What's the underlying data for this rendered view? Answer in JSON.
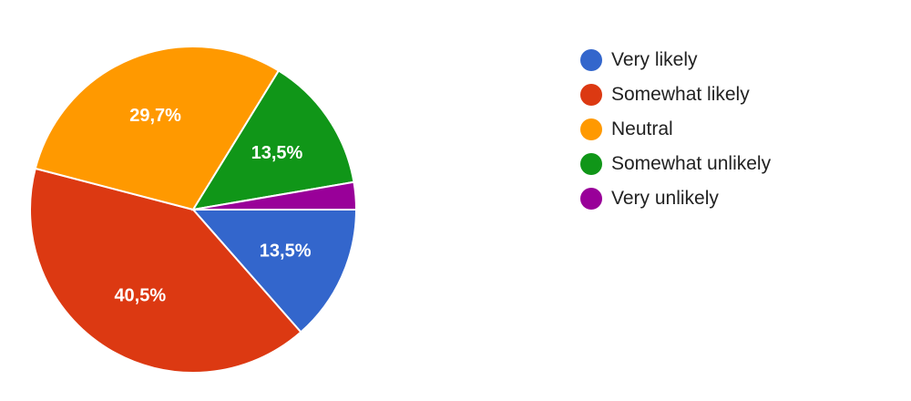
{
  "chart_data": {
    "type": "pie",
    "title": "",
    "categories": [
      "Very likely",
      "Somewhat likely",
      "Neutral",
      "Somewhat unlikely",
      "Very unlikely"
    ],
    "values": [
      13.5,
      40.5,
      29.7,
      13.5,
      2.7
    ],
    "data_labels": [
      "13,5%",
      "40,5%",
      "29,7%",
      "13,5%",
      ""
    ],
    "colors": [
      "#3366cc",
      "#dc3912",
      "#ff9900",
      "#109618",
      "#990099"
    ],
    "start": "3 o'clock",
    "direction": "clockwise",
    "legend_position": "right"
  }
}
